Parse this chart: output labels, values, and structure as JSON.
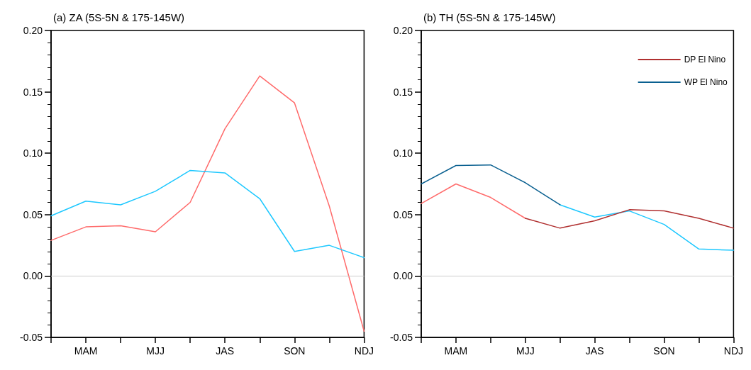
{
  "chart_data": [
    {
      "type": "line",
      "title": "(a) ZA (5S-5N & 175-145W)",
      "categories": [
        null,
        "MAM",
        null,
        "MJJ",
        null,
        "JAS",
        null,
        "SON",
        null,
        "NDJ"
      ],
      "series": [
        {
          "color": "#ff6b6b",
          "values": [
            0.029,
            0.04,
            0.041,
            0.036,
            0.06,
            0.12,
            0.163,
            0.141,
            0.057,
            -0.045
          ]
        },
        {
          "color": "#1ec8ff",
          "values": [
            0.049,
            0.061,
            0.058,
            0.069,
            0.086,
            0.084,
            0.063,
            0.02,
            0.025,
            0.015
          ]
        }
      ],
      "ylim": [
        -0.05,
        0.2
      ],
      "yticks": [
        {
          "value": -0.05,
          "label": "-0.05"
        },
        {
          "value": 0,
          "label": "0.00"
        },
        {
          "value": 0.05,
          "label": "0.05"
        },
        {
          "value": 0.1,
          "label": "0.10"
        },
        {
          "value": 0.15,
          "label": "0.15"
        },
        {
          "value": 0.2,
          "label": "0.20"
        },
        {
          "value": -0.04,
          "label": null
        },
        {
          "value": -0.03,
          "label": null
        },
        {
          "value": -0.02,
          "label": null
        },
        {
          "value": -0.01,
          "label": null
        },
        {
          "value": 0.01,
          "label": null
        },
        {
          "value": 0.02,
          "label": null
        },
        {
          "value": 0.03,
          "label": null
        },
        {
          "value": 0.04,
          "label": null
        },
        {
          "value": 0.06,
          "label": null
        },
        {
          "value": 0.07,
          "label": null
        },
        {
          "value": 0.08,
          "label": null
        },
        {
          "value": 0.09,
          "label": null
        },
        {
          "value": 0.11,
          "label": null
        },
        {
          "value": 0.12,
          "label": null
        },
        {
          "value": 0.13,
          "label": null
        },
        {
          "value": 0.14,
          "label": null
        },
        {
          "value": 0.16,
          "label": null
        },
        {
          "value": 0.17,
          "label": null
        },
        {
          "value": 0.18,
          "label": null
        },
        {
          "value": 0.19,
          "label": null
        }
      ],
      "ref_lines": [
        {
          "axis": "y",
          "value": 0,
          "color": "#cccccc"
        }
      ],
      "grid": false,
      "legend": false,
      "marker": "none",
      "line_style": "solid"
    },
    {
      "type": "line",
      "title": "(b) TH (5S-5N & 175-145W)",
      "categories": [
        null,
        "MAM",
        null,
        "MJJ",
        null,
        "JAS",
        null,
        "SON",
        null,
        "NDJ"
      ],
      "series": [
        {
          "color": "#ff6b6b",
          "values": [
            0.059,
            0.075,
            0.064,
            0.047,
            null,
            null,
            null,
            null,
            null,
            null
          ]
        },
        {
          "color": "#1ec8ff",
          "values": [
            null,
            null,
            null,
            null,
            0.058,
            0.048,
            0.053,
            0.042,
            0.022,
            0.021
          ]
        },
        {
          "name": "DP El Nino",
          "color": "#b03030",
          "values": [
            null,
            null,
            null,
            0.047,
            0.039,
            0.045,
            0.054,
            0.053,
            0.047,
            0.039
          ]
        },
        {
          "name": "WP El Nino",
          "color": "#0a6090",
          "values": [
            0.075,
            0.09,
            0.0905,
            0.076,
            0.058,
            null,
            null,
            null,
            null,
            null
          ]
        }
      ],
      "ylim": [
        -0.05,
        0.2
      ],
      "yticks": [
        {
          "value": -0.05,
          "label": "-0.05"
        },
        {
          "value": 0,
          "label": "0.00"
        },
        {
          "value": 0.05,
          "label": "0.05"
        },
        {
          "value": 0.1,
          "label": "0.10"
        },
        {
          "value": 0.15,
          "label": "0.15"
        },
        {
          "value": 0.2,
          "label": "0.20"
        },
        {
          "value": -0.04,
          "label": null
        },
        {
          "value": -0.03,
          "label": null
        },
        {
          "value": -0.02,
          "label": null
        },
        {
          "value": -0.01,
          "label": null
        },
        {
          "value": 0.01,
          "label": null
        },
        {
          "value": 0.02,
          "label": null
        },
        {
          "value": 0.03,
          "label": null
        },
        {
          "value": 0.04,
          "label": null
        },
        {
          "value": 0.06,
          "label": null
        },
        {
          "value": 0.07,
          "label": null
        },
        {
          "value": 0.08,
          "label": null
        },
        {
          "value": 0.09,
          "label": null
        },
        {
          "value": 0.11,
          "label": null
        },
        {
          "value": 0.12,
          "label": null
        },
        {
          "value": 0.13,
          "label": null
        },
        {
          "value": 0.14,
          "label": null
        },
        {
          "value": 0.16,
          "label": null
        },
        {
          "value": 0.17,
          "label": null
        },
        {
          "value": 0.18,
          "label": null
        },
        {
          "value": 0.19,
          "label": null
        }
      ],
      "ref_lines": [
        {
          "axis": "y",
          "value": 0,
          "color": "#cccccc"
        }
      ],
      "grid": false,
      "legend": "top right",
      "marker": "none",
      "line_style": "solid"
    }
  ]
}
